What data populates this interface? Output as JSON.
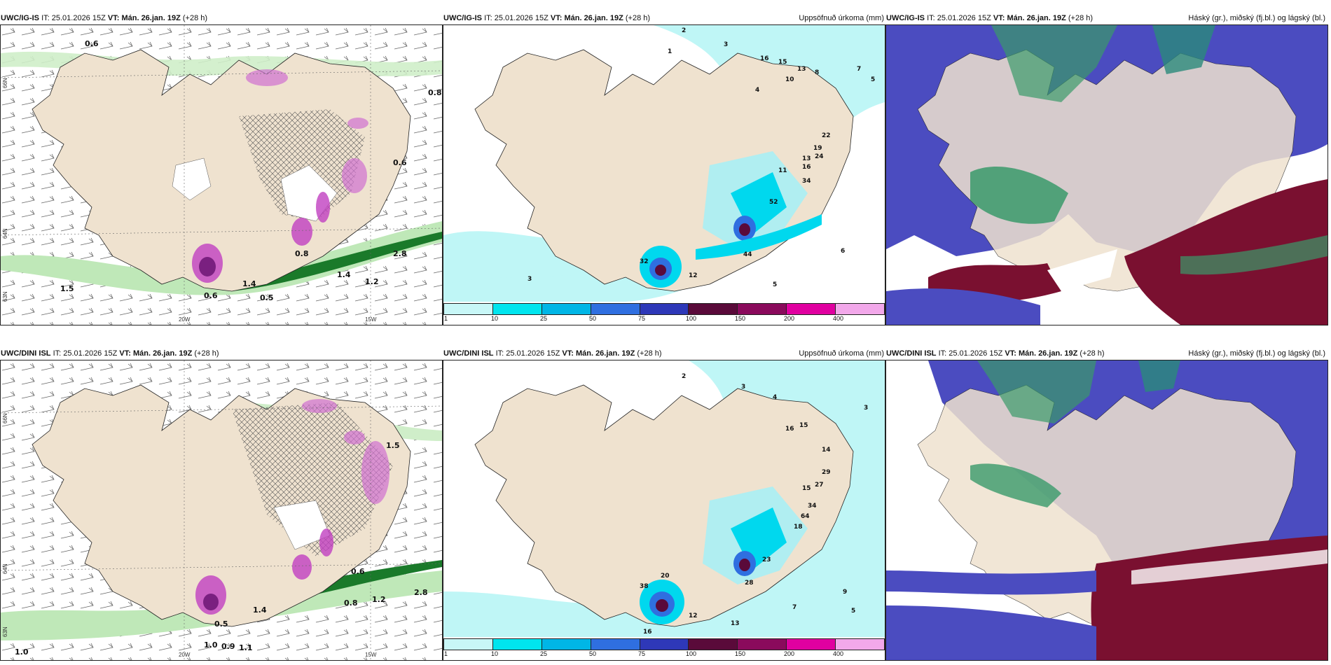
{
  "rows": [
    {
      "model": "UWC/IG-IS",
      "it_label": "IT:",
      "it_value": "25.01.2026 15Z",
      "vt_label": "VT:",
      "vt_value": "Mán. 26.jan. 19Z",
      "lead": "(+28 h)",
      "wind_panel": {
        "lon_labels": [
          "20W",
          "15W"
        ],
        "lat_labels": [
          "66N",
          "64N",
          "63N"
        ],
        "values": [
          "0.8",
          "0.6",
          "0.6",
          "0.5",
          "1.5",
          "1.4",
          "1.2",
          "0.8",
          "0.6",
          "2.8",
          "1.4"
        ]
      },
      "precip_panel": {
        "title": "Uppsöfnuð úrkoma (mm)",
        "values": [
          "2",
          "3",
          "1",
          "16",
          "15",
          "13",
          "10",
          "8",
          "7",
          "5",
          "4",
          "22",
          "24",
          "19",
          "16",
          "13",
          "11",
          "34",
          "52",
          "44",
          "32",
          "12",
          "6",
          "5",
          "3"
        ]
      },
      "cloud_panel": {
        "title": "Háský (gr.), miðský (fj.bl.) og lágský (bl.)"
      }
    },
    {
      "model": "UWC/DINI ISL",
      "it_label": "IT:",
      "it_value": "25.01.2026 15Z",
      "vt_label": "VT:",
      "vt_value": "Mán. 26.jan. 19Z",
      "lead": "(+28 h)",
      "wind_panel": {
        "lon_labels": [
          "20W",
          "15W"
        ],
        "lat_labels": [
          "66N",
          "64N",
          "63N"
        ],
        "values": [
          "1.0",
          "1.0",
          "0.9",
          "1.1",
          "0.5",
          "0.8",
          "0.6",
          "1.5",
          "1.4",
          "1.2",
          "2.8"
        ]
      },
      "precip_panel": {
        "title": "Uppsöfnuð úrkoma (mm)",
        "values": [
          "2",
          "3",
          "4",
          "16",
          "15",
          "14",
          "29",
          "27",
          "15",
          "34",
          "64",
          "18",
          "23",
          "28",
          "16",
          "20",
          "38",
          "12",
          "13",
          "7",
          "9",
          "5",
          "3"
        ]
      },
      "cloud_panel": {
        "title": "Háský (gr.), miðský (fj.bl.) og lágský (bl.)"
      }
    }
  ],
  "colorbar": {
    "labels": [
      "1",
      "10",
      "25",
      "50",
      "75",
      "100",
      "150",
      "200",
      "400"
    ],
    "colors": [
      "#c8f7f7",
      "#00e5ee",
      "#00b6e6",
      "#2f6fe0",
      "#2e38b8",
      "#5a0a3a",
      "#8a0a5c",
      "#e000a0",
      "#f2a8ea"
    ]
  },
  "colors": {
    "land": "#efe2cf",
    "sea_low": "#bff6f6",
    "green": "#1a8a2a",
    "magenta": "#c040c0",
    "cloud_blue": "#4b4cc0",
    "cloud_maroon": "#7a1030",
    "cloud_green": "#3a9a6a"
  }
}
